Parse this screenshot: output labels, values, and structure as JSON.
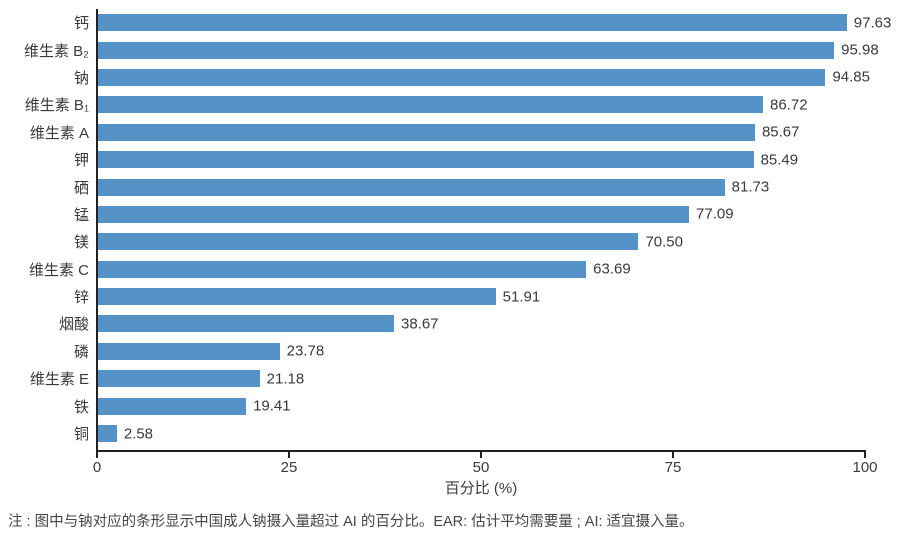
{
  "chart_data": {
    "type": "bar",
    "orientation": "horizontal",
    "categories": [
      "钙",
      "维生素 B₂",
      "钠",
      "维生素 B₁",
      "维生素 A",
      "钾",
      "硒",
      "锰",
      "镁",
      "维生素 C",
      "锌",
      "烟酸",
      "磷",
      "维生素 E",
      "铁",
      "铜"
    ],
    "values": [
      97.63,
      95.98,
      94.85,
      86.72,
      85.67,
      85.49,
      81.73,
      77.09,
      70.5,
      63.69,
      51.91,
      38.67,
      23.78,
      21.18,
      19.41,
      2.58
    ],
    "value_labels": [
      "97.63",
      "95.98",
      "94.85",
      "86.72",
      "85.67",
      "85.49",
      "81.73",
      "77.09",
      "70.50",
      "63.69",
      "51.91",
      "38.67",
      "23.78",
      "21.18",
      "19.41",
      "2.58"
    ],
    "title": "",
    "xlabel": "百分比 (%)",
    "ylabel": "",
    "xlim": [
      0,
      100
    ],
    "xticks": [
      "0",
      "25",
      "50",
      "75",
      "100"
    ],
    "grid": false,
    "legend": false,
    "bar_color": "#5592C8",
    "axis_color": "#222222",
    "text_color": "#3a3a3a"
  },
  "note": "注 : 图中与钠对应的条形显示中国成人钠摄入量超过 AI 的百分比。EAR: 估计平均需要量 ; AI: 适宜摄入量。"
}
